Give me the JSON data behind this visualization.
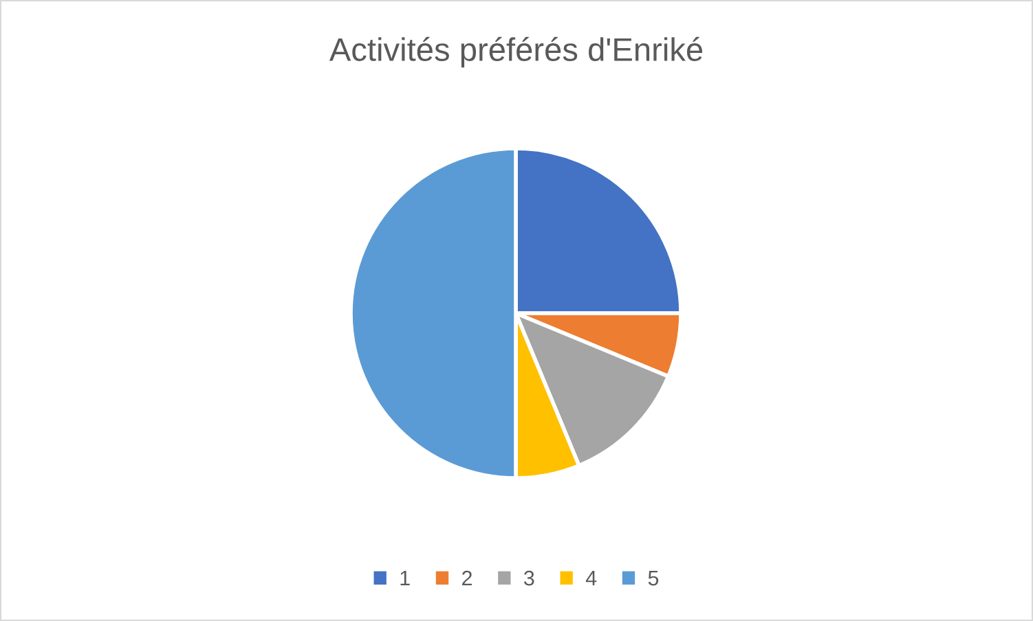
{
  "chart_data": {
    "type": "pie",
    "title": "Activités préférés d'Enriké",
    "categories": [
      "1",
      "2",
      "3",
      "4",
      "5"
    ],
    "values": [
      25,
      6.25,
      12.5,
      6.25,
      50
    ],
    "colors": [
      "#4472c4",
      "#ed7d31",
      "#a5a5a5",
      "#ffc000",
      "#5b9bd5"
    ],
    "legend": "bottom"
  }
}
